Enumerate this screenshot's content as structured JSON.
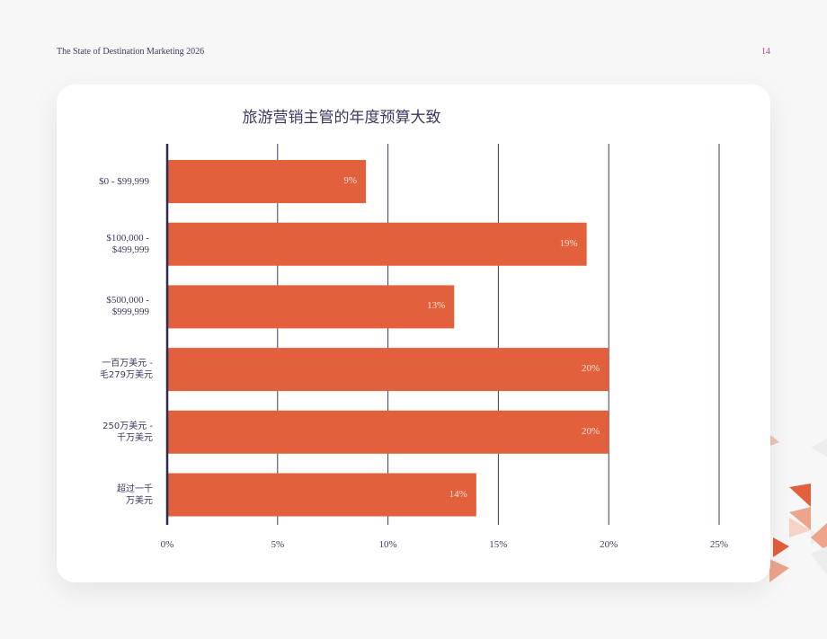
{
  "header": {
    "doc_title": "The State of Destination Marketing 2026",
    "page_number": "14"
  },
  "colors": {
    "bar": "#e2603c",
    "axis": "#2d2a55",
    "grid": "#3c3a5e",
    "background": "#f7f7f8",
    "card": "#ffffff"
  },
  "chart_data": {
    "type": "bar",
    "orientation": "horizontal",
    "title": "旅游营销主管的年度预算大致",
    "categories": [
      "$0 - $99,999",
      "$100,000 -\n$499,999",
      "$500,000 -\n$999,999",
      "一百万美元 -\n毛279万美元",
      "250万美元 -\n千万美元",
      "超过一千\n万美元"
    ],
    "values": [
      9,
      19,
      13,
      20,
      20,
      14
    ],
    "data_labels": [
      "9%",
      "19%",
      "13%",
      "20%",
      "20%",
      "14%"
    ],
    "xticks": [
      0,
      5,
      10,
      15,
      20,
      25
    ],
    "xtick_labels": [
      "0%",
      "5%",
      "10%",
      "15%",
      "20%",
      "25%"
    ],
    "xlim": [
      0,
      25
    ],
    "xlabel": "",
    "ylabel": "",
    "grid": true,
    "legend": "none"
  }
}
